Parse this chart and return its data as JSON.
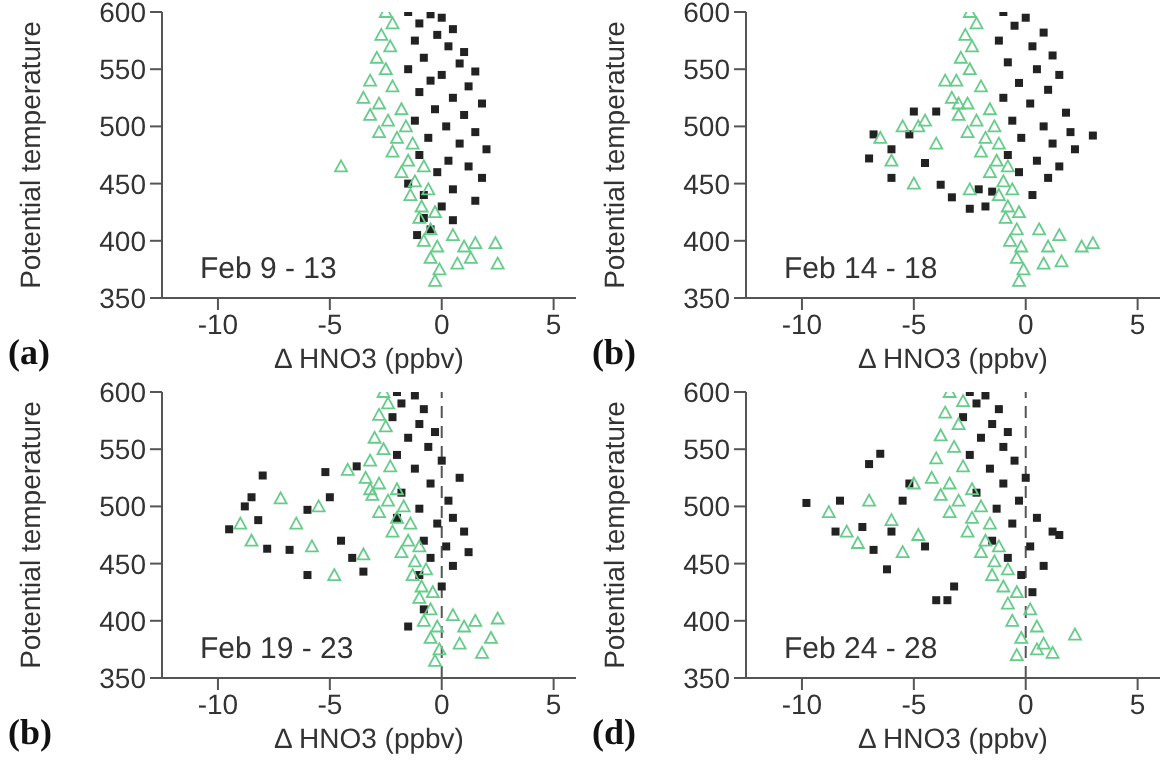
{
  "chart_data": [
    {
      "type": "scatter",
      "xlabel": "Δ HNO3  (ppbv)",
      "ylabel": "Potential temperature",
      "annotations": [
        "Feb 9 - 13",
        "(a)"
      ],
      "xlim": [
        -12.5,
        6
      ],
      "xticks": [
        -10,
        -5,
        0,
        5
      ],
      "ylim": [
        350,
        600
      ],
      "yticks": [
        350,
        400,
        450,
        500,
        550,
        600
      ],
      "series": [
        {
          "color": "#222222",
          "marker": "square",
          "x": [
            -1.5,
            -0.5,
            0,
            -1,
            0.5,
            -0.2,
            -1.2,
            0.3,
            1,
            -0.8,
            0.8,
            -1.5,
            1.5,
            0,
            -0.5,
            1.2,
            -1,
            0.5,
            1.8,
            -0.3,
            1,
            -1.2,
            0.2,
            1.5,
            -0.6,
            0.8,
            2,
            -1,
            0.3,
            1.2,
            -0.2,
            1.8,
            -1.5,
            0.5,
            -0.8,
            1.5,
            0,
            -0.8,
            0.5,
            -0.5,
            -1.1
          ],
          "values": [
            600,
            598,
            595,
            590,
            585,
            580,
            575,
            570,
            565,
            560,
            555,
            550,
            548,
            545,
            540,
            535,
            530,
            525,
            520,
            515,
            510,
            505,
            500,
            495,
            490,
            485,
            480,
            475,
            470,
            465,
            460,
            455,
            450,
            445,
            440,
            435,
            430,
            420,
            418,
            410,
            405
          ]
        },
        {
          "color": "#66cc8a",
          "marker": "triangle",
          "x": [
            -2.5,
            -2.2,
            -2.7,
            -2.3,
            -2.9,
            -2.5,
            -3.2,
            -2.2,
            -3.5,
            -2.8,
            -1.8,
            -3.2,
            -2.4,
            -1.6,
            -2.8,
            -2,
            -1.3,
            -2.2,
            -1.5,
            -0.8,
            -1.8,
            -1.2,
            -0.6,
            -1.4,
            -0.9,
            -0.3,
            -1,
            -0.5,
            -0.8,
            -0.2,
            -0.5,
            -0.1,
            -0.3,
            -4.5,
            0.5,
            1,
            1.5,
            2.4,
            2.5,
            0.7,
            1.3
          ],
          "values": [
            600,
            590,
            580,
            570,
            560,
            550,
            540,
            535,
            525,
            520,
            515,
            510,
            505,
            500,
            495,
            490,
            485,
            478,
            470,
            465,
            460,
            452,
            445,
            440,
            430,
            425,
            420,
            410,
            400,
            395,
            385,
            375,
            365,
            465,
            405,
            395,
            398,
            398,
            380,
            380,
            385
          ]
        }
      ]
    },
    {
      "type": "scatter",
      "xlabel": "Δ HNO3  (ppbv)",
      "ylabel": "Potential temperature",
      "annotations": [
        "Feb 14 - 18",
        "(b)"
      ],
      "xlim": [
        -12.5,
        6
      ],
      "xticks": [
        -10,
        -5,
        0,
        5
      ],
      "ylim": [
        350,
        600
      ],
      "yticks": [
        350,
        400,
        450,
        500,
        550,
        600
      ],
      "series": [
        {
          "color": "#222222",
          "marker": "square",
          "x": [
            -1,
            0,
            -0.5,
            0.8,
            -1.2,
            0.3,
            1.2,
            -0.8,
            0.5,
            1.5,
            -0.3,
            1,
            -1,
            0.2,
            1.8,
            -0.6,
            0.8,
            2,
            -0.2,
            1.2,
            2.2,
            -0.8,
            0.5,
            1.5,
            -0.3,
            1,
            -2.1,
            0.3,
            -7,
            -6.8,
            -6,
            -5.2,
            -5,
            -4.5,
            -4,
            -3.8,
            -3.3,
            -2.5,
            -1.8,
            -1.5,
            -6,
            3
          ],
          "values": [
            600,
            595,
            588,
            582,
            575,
            570,
            562,
            556,
            550,
            545,
            538,
            532,
            525,
            520,
            512,
            505,
            500,
            495,
            490,
            485,
            480,
            475,
            470,
            465,
            460,
            455,
            445,
            440,
            472,
            493,
            480,
            493,
            513,
            468,
            513,
            449,
            438,
            428,
            430,
            443,
            455,
            492
          ]
        },
        {
          "color": "#66cc8a",
          "marker": "triangle",
          "x": [
            -2.5,
            -2.2,
            -2.7,
            -2.4,
            -2.9,
            -2.5,
            -3.1,
            -2,
            -3.3,
            -2.6,
            -1.6,
            -3,
            -2.2,
            -1.4,
            -2.6,
            -1.8,
            -1.2,
            -2,
            -1.3,
            -0.8,
            -1.6,
            -1,
            -0.6,
            -1.2,
            -0.8,
            -0.3,
            -0.9,
            -0.4,
            -0.7,
            -0.2,
            -0.4,
            -0.1,
            -0.3,
            -6.5,
            -6,
            -5.5,
            -5,
            -4.5,
            -4,
            -3.6,
            -3,
            -2.5,
            -4.8,
            0.6,
            1,
            1.5,
            2.5,
            3,
            0.8,
            1.6
          ],
          "values": [
            600,
            590,
            580,
            570,
            560,
            550,
            540,
            535,
            525,
            520,
            515,
            510,
            505,
            500,
            495,
            490,
            485,
            478,
            470,
            465,
            460,
            452,
            445,
            440,
            430,
            425,
            420,
            410,
            400,
            395,
            385,
            375,
            365,
            490,
            470,
            500,
            450,
            505,
            485,
            540,
            520,
            445,
            500,
            410,
            395,
            405,
            395,
            398,
            380,
            382
          ]
        }
      ]
    },
    {
      "type": "scatter",
      "xlabel": "Δ HNO3  (ppbv)",
      "ylabel": "Potential temperature",
      "annotations": [
        "Feb 19 - 23",
        "(b)"
      ],
      "xlim": [
        -12.5,
        6
      ],
      "xticks": [
        -10,
        -5,
        0,
        5
      ],
      "ylim": [
        350,
        600
      ],
      "yticks": [
        350,
        400,
        450,
        500,
        550,
        600
      ],
      "ref_lines": [
        {
          "axis": "x",
          "value": 0,
          "color": "#555555",
          "line_style": "dashed"
        }
      ],
      "series": [
        {
          "color": "#222222",
          "marker": "square",
          "x": [
            -2,
            -1.2,
            -1.8,
            -0.8,
            -2.2,
            -1,
            -0.3,
            -1.5,
            -0.6,
            -2,
            0,
            -1.2,
            0.8,
            -0.5,
            -1.8,
            0.3,
            -1,
            0.5,
            -0.2,
            1,
            -0.8,
            0.2,
            1.2,
            -0.5,
            0.5,
            -1,
            0,
            -9.5,
            -8.8,
            -8.5,
            -8,
            -8.2,
            -7.8,
            -6.8,
            -6,
            -6,
            -5,
            -4.5,
            -4,
            -5.2,
            -3.8,
            -3.5,
            -2,
            -1.5,
            -0.8
          ],
          "values": [
            600,
            597,
            590,
            585,
            578,
            572,
            565,
            560,
            552,
            545,
            540,
            533,
            525,
            520,
            512,
            505,
            498,
            490,
            485,
            478,
            470,
            465,
            460,
            455,
            448,
            440,
            430,
            480,
            500,
            508,
            527,
            488,
            463,
            462,
            497,
            440,
            508,
            470,
            455,
            530,
            535,
            443,
            490,
            395,
            410
          ]
        },
        {
          "color": "#66cc8a",
          "marker": "triangle",
          "x": [
            -2.6,
            -2.4,
            -2.8,
            -2.5,
            -3,
            -2.6,
            -3.2,
            -2.3,
            -3.4,
            -2.8,
            -2,
            -3.1,
            -2.4,
            -1.7,
            -2.8,
            -2,
            -1.4,
            -2.2,
            -1.5,
            -1,
            -1.8,
            -1.2,
            -0.7,
            -1.3,
            -0.9,
            -0.4,
            -1,
            -0.5,
            -0.8,
            -0.2,
            -0.5,
            -0.1,
            -0.3,
            -9,
            -8.5,
            -7.2,
            -6.5,
            -5.8,
            -5.5,
            -4.8,
            -4.2,
            -3.5,
            -3.2,
            0.5,
            1,
            1.5,
            2.2,
            2.5,
            0.8,
            1.8
          ],
          "values": [
            600,
            590,
            580,
            570,
            560,
            550,
            540,
            535,
            525,
            520,
            515,
            510,
            505,
            500,
            495,
            490,
            485,
            478,
            470,
            465,
            460,
            452,
            445,
            440,
            430,
            425,
            420,
            410,
            400,
            395,
            385,
            375,
            365,
            485,
            470,
            507,
            485,
            465,
            500,
            440,
            532,
            458,
            515,
            405,
            395,
            400,
            385,
            402,
            380,
            372
          ]
        }
      ]
    },
    {
      "type": "scatter",
      "xlabel": "Δ HNO3  (ppbv)",
      "ylabel": "Potential temperature",
      "annotations": [
        "Feb 24 - 28",
        "(d)"
      ],
      "xlim": [
        -12.5,
        6
      ],
      "xticks": [
        -10,
        -5,
        0,
        5
      ],
      "ylim": [
        350,
        600
      ],
      "yticks": [
        350,
        400,
        450,
        500,
        550,
        600
      ],
      "ref_lines": [
        {
          "axis": "x",
          "value": 0,
          "color": "#555555",
          "line_style": "dashed"
        }
      ],
      "series": [
        {
          "color": "#222222",
          "marker": "square",
          "x": [
            -2.5,
            -1.8,
            -2.2,
            -1.2,
            -2.8,
            -1.5,
            -0.8,
            -2,
            -1,
            -2.5,
            -0.5,
            -1.6,
            0,
            -1,
            -2.2,
            -0.3,
            -1.3,
            0.5,
            -0.6,
            1.2,
            -1.5,
            0.2,
            1.5,
            -0.8,
            0.8,
            -0.2,
            0.3,
            -9.8,
            -8.5,
            -8.3,
            -7.3,
            -6.8,
            -6.2,
            -6,
            -5.5,
            -5.2,
            -4.5,
            -4,
            -3.5,
            -3.2,
            -7,
            -6.5
          ],
          "values": [
            600,
            597,
            590,
            585,
            578,
            572,
            565,
            560,
            552,
            545,
            540,
            533,
            525,
            520,
            512,
            505,
            498,
            490,
            485,
            478,
            470,
            465,
            475,
            455,
            448,
            440,
            425,
            503,
            478,
            505,
            482,
            462,
            445,
            478,
            505,
            520,
            465,
            418,
            418,
            430,
            537,
            546
          ]
        },
        {
          "color": "#66cc8a",
          "marker": "triangle",
          "x": [
            -3.4,
            -2.8,
            -3.6,
            -3,
            -3.8,
            -3.2,
            -4,
            -2.8,
            -4.2,
            -3.4,
            -2.4,
            -3.8,
            -3,
            -2,
            -3.4,
            -2.4,
            -1.6,
            -2.6,
            -1.8,
            -1.2,
            -2,
            -1.4,
            -0.8,
            -1.5,
            -1,
            -0.4,
            -0.8,
            0.2,
            -0.6,
            0.5,
            -0.2,
            0.8,
            -0.4,
            -8.8,
            -8,
            -7.5,
            -7,
            -6,
            -5.5,
            -5,
            -4.8,
            2.2,
            1.2,
            0.5
          ],
          "values": [
            600,
            592,
            582,
            572,
            562,
            552,
            542,
            535,
            525,
            520,
            515,
            510,
            505,
            500,
            495,
            490,
            485,
            478,
            470,
            465,
            460,
            452,
            445,
            440,
            430,
            425,
            415,
            410,
            400,
            395,
            385,
            380,
            370,
            495,
            478,
            468,
            505,
            488,
            460,
            520,
            475,
            388,
            372,
            375
          ]
        }
      ]
    }
  ]
}
